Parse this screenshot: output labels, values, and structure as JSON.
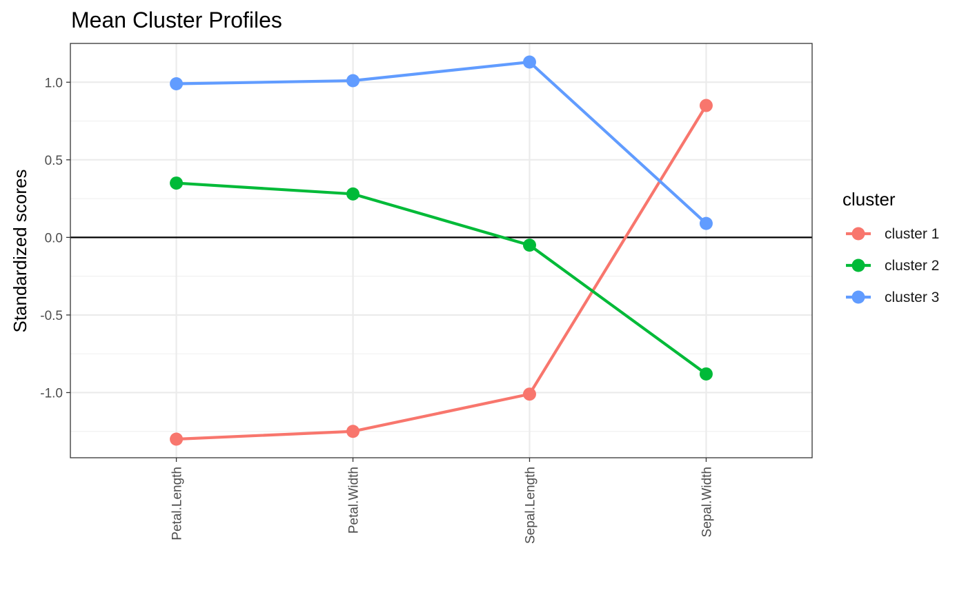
{
  "chart_data": {
    "type": "line",
    "title": "Mean Cluster Profiles",
    "xlabel": "",
    "ylabel": "Standardized scores",
    "categories": [
      "Petal.Length",
      "Petal.Width",
      "Sepal.Length",
      "Sepal.Width"
    ],
    "series": [
      {
        "name": "cluster 1",
        "color": "#F8766D",
        "values": [
          -1.3,
          -1.25,
          -1.01,
          0.85
        ]
      },
      {
        "name": "cluster 2",
        "color": "#00BA38",
        "values": [
          0.35,
          0.28,
          -0.05,
          -0.88
        ]
      },
      {
        "name": "cluster 3",
        "color": "#619CFF",
        "values": [
          0.99,
          1.01,
          1.13,
          0.09
        ]
      }
    ],
    "ylim": [
      -1.42,
      1.25
    ],
    "y_ticks": [
      -1.0,
      -0.5,
      0.0,
      0.5,
      1.0
    ],
    "y_tick_labels": [
      "-1.0",
      "-0.5",
      "0.0",
      "0.5",
      "1.0"
    ],
    "y_minor_ticks": [
      -1.25,
      -0.75,
      -0.25,
      0.25,
      0.75
    ],
    "reference_line_y": 0,
    "reference_line_color": "#000000",
    "x_tick_label_rotation": "vertical",
    "grid": true,
    "legend": {
      "title": "cluster",
      "placement": "right"
    },
    "theme": "black-and-white (white panel, grey gridlines, dark border)"
  }
}
